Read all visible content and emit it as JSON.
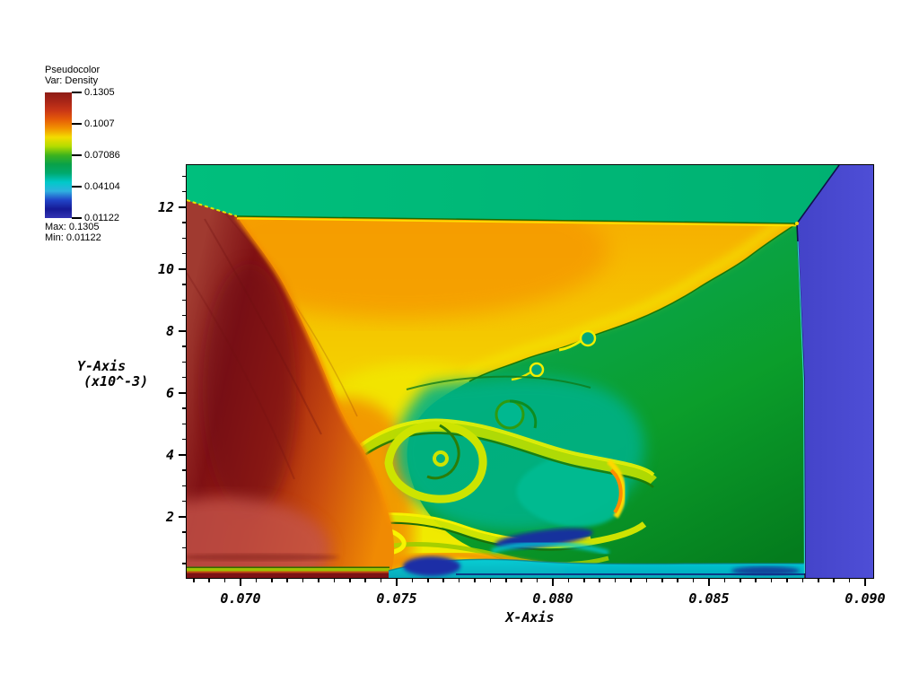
{
  "legend": {
    "title": "Pseudocolor",
    "var_label": "Var: Density",
    "ticks": [
      "0.1305",
      "0.1007",
      "0.07086",
      "0.04104",
      "0.01122"
    ],
    "max_label": "Max: 0.1305",
    "min_label": "Min: 0.01122",
    "colormap": [
      "#8e1c16",
      "#a92517",
      "#c93617",
      "#e55b08",
      "#f29200",
      "#f3dc00",
      "#b4dc00",
      "#3db31e",
      "#0aa148",
      "#00a96e",
      "#00c9c9",
      "#2fb0e0",
      "#2145c8",
      "#161a96",
      "#3434b4"
    ]
  },
  "chart_data": {
    "type": "heatmap",
    "variable": "Density",
    "min": 0.01122,
    "max": 0.1305,
    "legend_tick_values": [
      0.1305,
      0.1007,
      0.07086,
      0.04104,
      0.01122
    ],
    "xlabel": "X-Axis",
    "ylabel": "Y-Axis",
    "ylabel_scale": "(x10^-3)",
    "xlim": [
      0.068276,
      0.090259
    ],
    "ylim": [
      0.029,
      13.362
    ],
    "x_tick_values": [
      0.07,
      0.075,
      0.08,
      0.085,
      0.09
    ],
    "x_tick_labels": [
      "0.070",
      "0.075",
      "0.080",
      "0.085",
      "0.090"
    ],
    "x_major_step": 0.005,
    "x_minor_step": 0.0005,
    "y_tick_values": [
      2,
      4,
      6,
      8,
      10,
      12
    ],
    "y_tick_labels": [
      "2",
      "4",
      "6",
      "8",
      "10",
      "12"
    ],
    "y_major_step": 2,
    "y_minor_step": 0.5,
    "grid": false,
    "legend_position": "upper-left",
    "regions": [
      {
        "name": "dense-shocked-wedge",
        "location": "left",
        "approx_density": 0.124,
        "color": "#8c1512"
      },
      {
        "name": "compressed-orange-fan-edge",
        "location": "left-boundary",
        "approx_density": 0.092,
        "color": "#f08a03"
      },
      {
        "name": "shocked-yellow-region",
        "location": "upper-center",
        "approx_density": 0.08,
        "color": "#f2d800"
      },
      {
        "name": "top-emerald-band",
        "location": "top",
        "approx_density": 0.056,
        "color": "#00b778"
      },
      {
        "name": "ambient-green",
        "location": "right-center",
        "approx_density": 0.063,
        "color": "#0b9e2c"
      },
      {
        "name": "turbulent-mixing-zone",
        "location": "bottom-center",
        "approx_density": "0.045-0.085",
        "color": "#00b186"
      },
      {
        "name": "wall-cyan-layer",
        "location": "bottom",
        "approx_density": 0.047,
        "color": "#00c9d9"
      },
      {
        "name": "wall-navy-blobs",
        "location": "bottom",
        "approx_density": 0.026,
        "color": "#15309d"
      },
      {
        "name": "low-density-column",
        "location": "right",
        "approx_density": 0.019,
        "color": "#4a4ad0"
      }
    ]
  }
}
